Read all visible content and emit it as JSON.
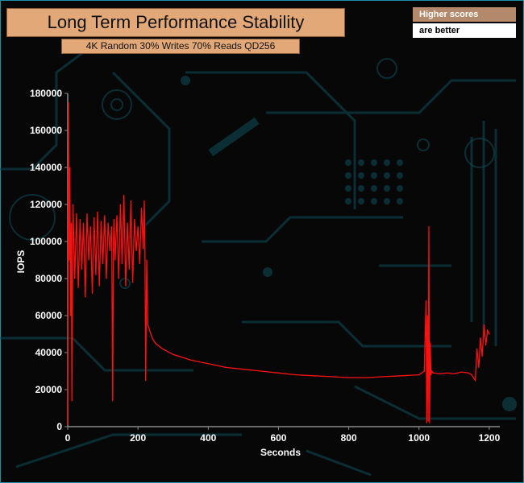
{
  "header": {
    "title": "Long Term Performance Stability",
    "subtitle": "4K Random 30% Writes 70% Reads QD256",
    "note_line1": "Higher scores",
    "note_line2": "are better"
  },
  "colors": {
    "series": "#ff1010",
    "circuit": "#0e5560",
    "background": "#070707",
    "title_box": "#e2a878"
  },
  "chart_data": {
    "type": "line",
    "title": "Long Term Performance Stability",
    "subtitle": "4K Random 30% Writes 70% Reads QD256",
    "xlabel": "Seconds",
    "ylabel": "IOPS",
    "xlim": [
      0,
      1230
    ],
    "ylim": [
      0,
      180000
    ],
    "xticks": [
      0,
      200,
      400,
      600,
      800,
      1000,
      1200
    ],
    "yticks": [
      0,
      20000,
      40000,
      60000,
      80000,
      100000,
      120000,
      140000,
      160000,
      180000
    ],
    "grid": false,
    "series": [
      {
        "x": [
          0,
          2,
          4,
          6,
          8,
          10,
          12,
          15,
          20,
          25,
          30,
          35,
          40,
          45,
          50,
          55,
          60,
          65,
          70,
          75,
          80,
          85,
          90,
          95,
          100,
          105,
          110,
          115,
          120,
          125,
          128,
          130,
          132,
          135,
          140,
          145,
          150,
          155,
          160,
          165,
          170,
          175,
          180,
          185,
          190,
          195,
          200,
          205,
          210,
          215,
          218,
          220,
          222,
          225,
          228,
          230,
          240,
          250,
          270,
          300,
          350,
          400,
          450,
          500,
          550,
          600,
          650,
          700,
          750,
          800,
          850,
          900,
          950,
          1000,
          1015,
          1020,
          1022,
          1024,
          1026,
          1028,
          1030,
          1032,
          1034,
          1036,
          1040,
          1060,
          1080,
          1100,
          1120,
          1140,
          1150,
          1160,
          1165,
          1170,
          1175,
          1180,
          1185,
          1190,
          1195,
          1200
        ],
        "y": [
          1000,
          175000,
          90000,
          140000,
          60000,
          110000,
          14000,
          120000,
          80000,
          115000,
          75000,
          112000,
          85000,
          110000,
          70000,
          115000,
          90000,
          108000,
          72000,
          113000,
          82000,
          116000,
          76000,
          111000,
          88000,
          114000,
          80000,
          110000,
          95000,
          108000,
          14000,
          100000,
          112000,
          90000,
          114000,
          80000,
          120000,
          88000,
          125000,
          76000,
          110000,
          85000,
          122000,
          78000,
          112000,
          95000,
          108000,
          88000,
          118000,
          96000,
          122000,
          90000,
          25000,
          90000,
          55000,
          54000,
          48000,
          45000,
          42000,
          39000,
          36000,
          34000,
          32000,
          31000,
          30000,
          29000,
          28000,
          27500,
          27000,
          26500,
          26500,
          27000,
          27500,
          28000,
          30000,
          68000,
          2000,
          60000,
          3000,
          108000,
          2000,
          45000,
          28000,
          30000,
          29000,
          28500,
          29000,
          28500,
          29500,
          29000,
          28000,
          25000,
          42000,
          32000,
          48000,
          38000,
          55000,
          44000,
          52000,
          50000
        ]
      }
    ]
  }
}
